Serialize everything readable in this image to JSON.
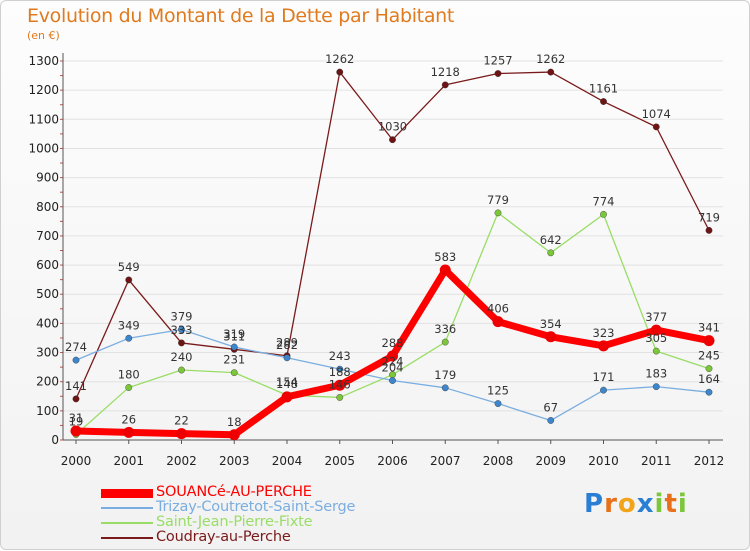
{
  "chart_data": {
    "type": "line",
    "title": "Evolution du Montant de la Dette par Habitant",
    "subtitle": "(en €)",
    "xlabel": "",
    "ylabel": "",
    "categories": [
      "2000",
      "2001",
      "2002",
      "2003",
      "2004",
      "2005",
      "2006",
      "2007",
      "2008",
      "2009",
      "2010",
      "2011",
      "2012"
    ],
    "ylim": [
      0,
      1300
    ],
    "yticks": [
      0,
      100,
      200,
      300,
      400,
      500,
      600,
      700,
      800,
      900,
      1000,
      1100,
      1200,
      1300
    ],
    "grid": true,
    "legend_position": "bottom",
    "series": [
      {
        "name": "Coudray-au-Perche",
        "color": "#7a1a1a",
        "marker": "#6e1414",
        "values": [
          141,
          549,
          333,
          311,
          289,
          1262,
          1030,
          1218,
          1257,
          1262,
          1161,
          1074,
          719
        ]
      },
      {
        "name": "Saint-Jean-Pierre-Fixte",
        "color": "#99dd66",
        "marker": "#7cc63a",
        "values": [
          19,
          180,
          240,
          231,
          154,
          146,
          224,
          336,
          779,
          642,
          774,
          305,
          245
        ]
      },
      {
        "name": "Trizay-Coutretot-Saint-Serge",
        "color": "#7aaee0",
        "marker": "#3d86cc",
        "values": [
          274,
          349,
          379,
          319,
          282,
          243,
          204,
          179,
          125,
          67,
          171,
          183,
          164
        ]
      },
      {
        "name": "SOUANCé-AU-PERCHE",
        "color": "#ff0000",
        "marker": "#ee0000",
        "values": [
          31,
          26,
          22,
          18,
          148,
          188,
          288,
          583,
          406,
          354,
          323,
          377,
          341
        ]
      }
    ],
    "labels": {
      "Coudray-au-Perche": [
        "141",
        "549",
        "333",
        "311",
        "289",
        "1262",
        "1030",
        "1218",
        "1257",
        "1262",
        "1161",
        "1074",
        "719"
      ],
      "Saint-Jean-Pierre-Fixte": [
        "19",
        "180",
        "240",
        "231",
        "154",
        "146",
        "224",
        "336",
        "779",
        "642",
        "774",
        "305",
        "245"
      ],
      "Trizay-Coutretot-Saint-Serge": [
        "274",
        "349",
        "379",
        "319",
        "282",
        "243",
        "204",
        "179",
        "125",
        "67",
        "171",
        "183",
        "164"
      ],
      "SOUANCé-AU-PERCHE": [
        "31",
        "26",
        "22",
        "18",
        "148",
        "188",
        "288",
        "583",
        "406",
        "354",
        "323",
        "377",
        "341"
      ]
    }
  },
  "legend": [
    {
      "label": "SOUANCé-AU-PERCHE",
      "color": "#ff0000"
    },
    {
      "label": "Trizay-Coutretot-Saint-Serge",
      "color": "#7aaee0"
    },
    {
      "label": "Saint-Jean-Pierre-Fixte",
      "color": "#99dd66"
    },
    {
      "label": "Coudray-au-Perche",
      "color": "#7a1a1a"
    }
  ],
  "brand": {
    "letters": [
      "P",
      "r",
      "o",
      "x",
      "i",
      "t",
      "i"
    ],
    "colors": [
      "#2a7fd4",
      "#e8701a",
      "#f2a51a",
      "#2a7fd4",
      "#7cc63a",
      "#e8701a",
      "#7cc63a"
    ]
  }
}
